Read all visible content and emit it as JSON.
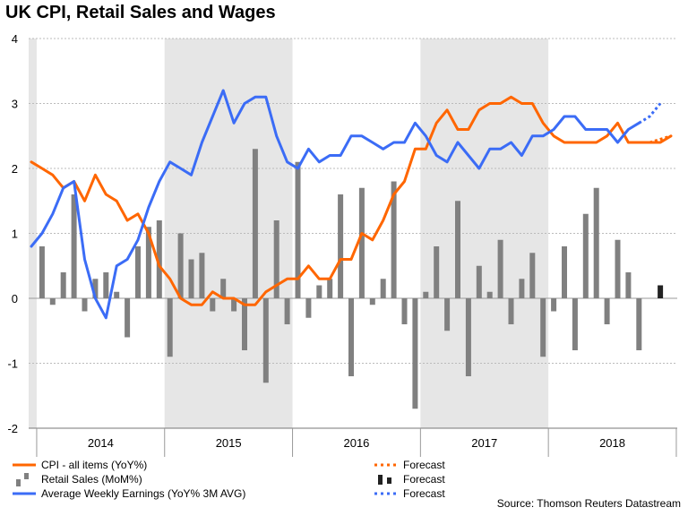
{
  "title": "UK CPI, Retail Sales and Wages",
  "source": "Source: Thomson Reuters Datastream",
  "colors": {
    "cpi": "#ff6600",
    "retail": "#808080",
    "retail_forecast": "#222222",
    "awe": "#3b6cf6",
    "shade": "#e6e6e6",
    "grid": "#bbbbbb"
  },
  "legend": {
    "cpi_label": "CPI - all items (YoY%)",
    "retail_label": "Retail Sales (MoM%)",
    "awe_label": "Average Weekly Earnings (YoY% 3M AVG)",
    "cpi_forecast_label": "Forecast",
    "retail_forecast_label": "Forecast",
    "awe_forecast_label": "Forecast"
  },
  "chart_data": {
    "type": "line",
    "title": "UK CPI, Retail Sales and Wages",
    "x_unit": "month index (0 = Dec 2013)",
    "years": [
      "2014",
      "2015",
      "2016",
      "2017",
      "2018"
    ],
    "ylim": [
      -2,
      4
    ],
    "yticks": [
      -2,
      -1,
      0,
      1,
      2,
      3,
      4
    ],
    "grid": true,
    "shaded_years": [
      "2013",
      "2015",
      "2017"
    ],
    "series": [
      {
        "name": "CPI - all items (YoY%)",
        "kind": "line",
        "x": [
          0,
          1,
          2,
          3,
          4,
          5,
          6,
          7,
          8,
          9,
          10,
          11,
          12,
          13,
          14,
          15,
          16,
          17,
          18,
          19,
          20,
          21,
          22,
          23,
          24,
          25,
          26,
          27,
          28,
          29,
          30,
          31,
          32,
          33,
          34,
          35,
          36,
          37,
          38,
          39,
          40,
          41,
          42,
          43,
          44,
          45,
          46,
          47,
          48,
          49,
          50,
          51,
          52,
          53,
          54,
          55,
          56,
          57,
          58,
          59,
          60
        ],
        "values": [
          2.1,
          2.0,
          1.9,
          1.7,
          1.8,
          1.5,
          1.9,
          1.6,
          1.5,
          1.2,
          1.3,
          1.0,
          0.5,
          0.3,
          0.0,
          -0.1,
          -0.1,
          0.1,
          0.0,
          0.0,
          -0.1,
          -0.1,
          0.1,
          0.2,
          0.3,
          0.3,
          0.5,
          0.3,
          0.3,
          0.6,
          0.6,
          1.0,
          0.9,
          1.2,
          1.6,
          1.8,
          2.3,
          2.3,
          2.7,
          2.9,
          2.6,
          2.6,
          2.9,
          3.0,
          3.0,
          3.1,
          3.0,
          3.0,
          2.7,
          2.5,
          2.4,
          2.4,
          2.4,
          2.4,
          2.5,
          2.7,
          2.4,
          2.4,
          2.4,
          2.4,
          2.5
        ]
      },
      {
        "name": "CPI Forecast",
        "kind": "line-dotted",
        "x": [
          58,
          59,
          60
        ],
        "values": [
          2.4,
          2.45,
          2.5
        ]
      },
      {
        "name": "Average Weekly Earnings (YoY% 3M AVG)",
        "kind": "line",
        "x": [
          0,
          1,
          2,
          3,
          4,
          5,
          6,
          7,
          8,
          9,
          10,
          11,
          12,
          13,
          14,
          15,
          16,
          17,
          18,
          19,
          20,
          21,
          22,
          23,
          24,
          25,
          26,
          27,
          28,
          29,
          30,
          31,
          32,
          33,
          34,
          35,
          36,
          37,
          38,
          39,
          40,
          41,
          42,
          43,
          44,
          45,
          46,
          47,
          48,
          49,
          50,
          51,
          52,
          53,
          54,
          55,
          56,
          57
        ],
        "values": [
          0.8,
          1.0,
          1.3,
          1.7,
          1.8,
          0.6,
          0.0,
          -0.3,
          0.5,
          0.6,
          0.9,
          1.4,
          1.8,
          2.1,
          2.0,
          1.9,
          2.4,
          2.8,
          3.2,
          2.7,
          3.0,
          3.1,
          3.1,
          2.5,
          2.1,
          2.0,
          2.3,
          2.1,
          2.2,
          2.2,
          2.5,
          2.5,
          2.4,
          2.3,
          2.4,
          2.4,
          2.7,
          2.5,
          2.2,
          2.1,
          2.4,
          2.2,
          2.0,
          2.3,
          2.3,
          2.4,
          2.2,
          2.5,
          2.5,
          2.6,
          2.8,
          2.8,
          2.6,
          2.6,
          2.6,
          2.4,
          2.6,
          2.7
        ]
      },
      {
        "name": "Average Weekly Earnings Forecast",
        "kind": "line-dotted",
        "x": [
          57,
          58,
          59
        ],
        "values": [
          2.7,
          2.8,
          3.0
        ]
      },
      {
        "name": "Retail Sales (MoM%)",
        "kind": "bar",
        "x": [
          1,
          2,
          3,
          4,
          5,
          6,
          7,
          8,
          9,
          10,
          11,
          12,
          13,
          14,
          15,
          16,
          17,
          18,
          19,
          20,
          21,
          22,
          23,
          24,
          25,
          26,
          27,
          28,
          29,
          30,
          31,
          32,
          33,
          34,
          35,
          36,
          37,
          38,
          39,
          40,
          41,
          42,
          43,
          44,
          45,
          46,
          47,
          48,
          49,
          50,
          51,
          52,
          53,
          54,
          55,
          56,
          57,
          58,
          59
        ],
        "values": [
          0.8,
          -0.1,
          0.4,
          1.6,
          -0.2,
          0.3,
          0.4,
          0.1,
          -0.6,
          0.8,
          1.1,
          1.2,
          -0.9,
          1.0,
          0.6,
          0.7,
          -0.2,
          0.3,
          -0.2,
          -0.8,
          2.3,
          -1.3,
          1.2,
          -0.4,
          2.1,
          -0.3,
          0.2,
          0.3,
          1.6,
          -1.2,
          1.7,
          -0.1,
          0.3,
          1.8,
          -0.4,
          -1.7,
          0.1,
          0.8,
          -0.5,
          1.5,
          -1.2,
          0.5,
          0.1,
          0.9,
          -0.4,
          0.3,
          0.7,
          -0.9,
          -0.2,
          0.8,
          -0.8,
          1.3,
          1.7,
          -0.4,
          0.9,
          0.4,
          -0.8,
          0.0,
          0.0
        ]
      },
      {
        "name": "Retail Sales Forecast",
        "kind": "bar",
        "x": [
          59
        ],
        "values": [
          0.2
        ]
      }
    ]
  }
}
